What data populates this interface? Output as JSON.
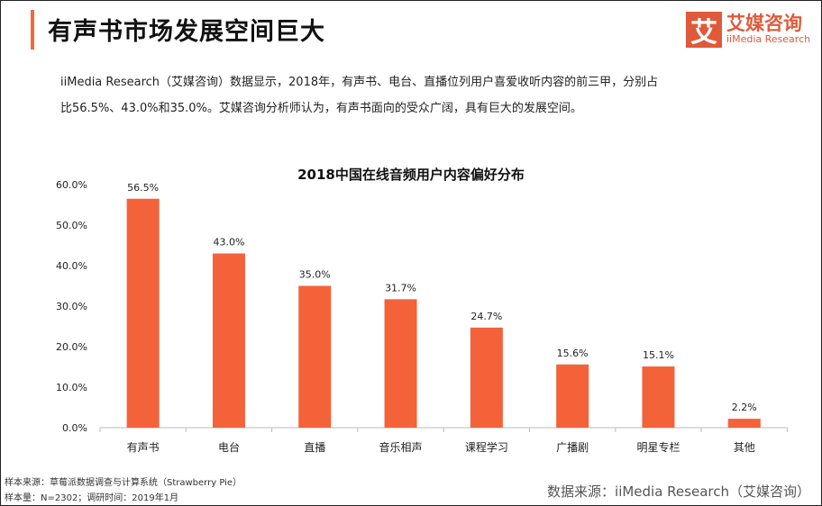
{
  "header": {
    "title": "有声书市场发展空间巨大",
    "logo_cn": "艾媒咨询",
    "logo_en": "iiMedia Research",
    "logo_mark": "艾"
  },
  "description": [
    "iiMedia Research（艾媒咨询）数据显示，2018年，有声书、电台、直播位列用户喜爱收听内容的前三甲，分别占",
    "比56.5%、43.0%和35.0%。艾媒咨询分析师认为，有声书面向的受众广阔，具有巨大的发展空间。"
  ],
  "chart_data": {
    "type": "bar",
    "title": "2018中国在线音频用户内容偏好分布",
    "categories": [
      "有声书",
      "电台",
      "直播",
      "音乐相声",
      "课程学习",
      "广播剧",
      "明星专栏",
      "其他"
    ],
    "values": [
      56.5,
      43.0,
      35.0,
      31.7,
      24.7,
      15.6,
      15.1,
      2.2
    ],
    "data_labels": [
      "56.5%",
      "43.0%",
      "35.0%",
      "31.7%",
      "24.7%",
      "15.6%",
      "15.1%",
      "2.2%"
    ],
    "ylim": [
      0,
      60
    ],
    "yticks": [
      "0.0%",
      "10.0%",
      "20.0%",
      "30.0%",
      "40.0%",
      "50.0%",
      "60.0%"
    ],
    "grid": false,
    "bar_color": "#f4623a"
  },
  "footer": {
    "sample_source": "样本来源：草莓派数据调查与计算系统（Strawberry Pie）",
    "sample_size": "样本量：N=2302；调研时间：2019年1月",
    "data_source": "数据来源：iiMedia Research（艾媒咨询）"
  }
}
